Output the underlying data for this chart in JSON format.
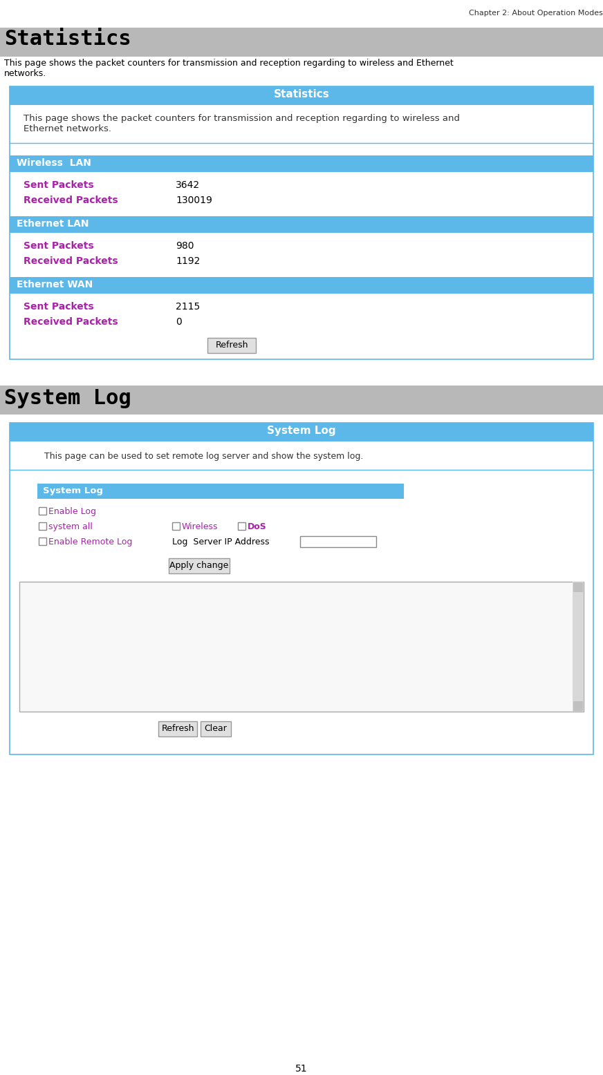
{
  "chapter_header": "Chapter 2: About Operation Modes",
  "page_number": "51",
  "section1_title": "Statistics",
  "section1_desc": "This page shows the packet counters for transmission and reception regarding to wireless and Ethernet\nnetworks.",
  "panel1_title": "Statistics",
  "panel1_desc": "This page shows the packet counters for transmission and reception regarding to wireless and\nEthernet networks.",
  "wireless_lan_label": "Wireless  LAN",
  "wireless_sent_label": "Sent Packets",
  "wireless_sent_value": "3642",
  "wireless_recv_label": "Received Packets",
  "wireless_recv_value": "130019",
  "eth_lan_label": "Ethernet LAN",
  "eth_lan_sent_label": "Sent Packets",
  "eth_lan_sent_value": "980",
  "eth_lan_recv_label": "Received Packets",
  "eth_lan_recv_value": "1192",
  "eth_wan_label": "Ethernet WAN",
  "eth_wan_sent_label": "Sent Packets",
  "eth_wan_sent_value": "2115",
  "eth_wan_recv_label": "Received Packets",
  "eth_wan_recv_value": "0",
  "refresh_btn": "Refresh",
  "section2_title": "System Log",
  "panel2_title": "System Log",
  "panel2_desc": "This page can be used to set remote log server and show the system log.",
  "syslog_box_label": "System Log",
  "enable_log_label": "Enable Log",
  "system_all_label": "system all",
  "wireless_check_label": "Wireless",
  "dos_check_label": "DoS",
  "enable_remote_label": "Enable Remote Log",
  "log_server_label": "Log  Server IP Address",
  "apply_btn": "Apply change",
  "refresh_btn2": "Refresh",
  "clear_btn": "Clear",
  "cyan_bar_color": "#5bb8e8",
  "section_header_bg": "#b8b8b8",
  "purple_text": "#aa22aa",
  "white_text": "#ffffff",
  "black_text": "#000000",
  "dark_text": "#333333",
  "border_color": "#5bb8e8",
  "btn_bg": "#e0e0e0",
  "btn_border": "#999999",
  "fig_w": 8.72,
  "fig_h": 15.56,
  "dpi": 100
}
